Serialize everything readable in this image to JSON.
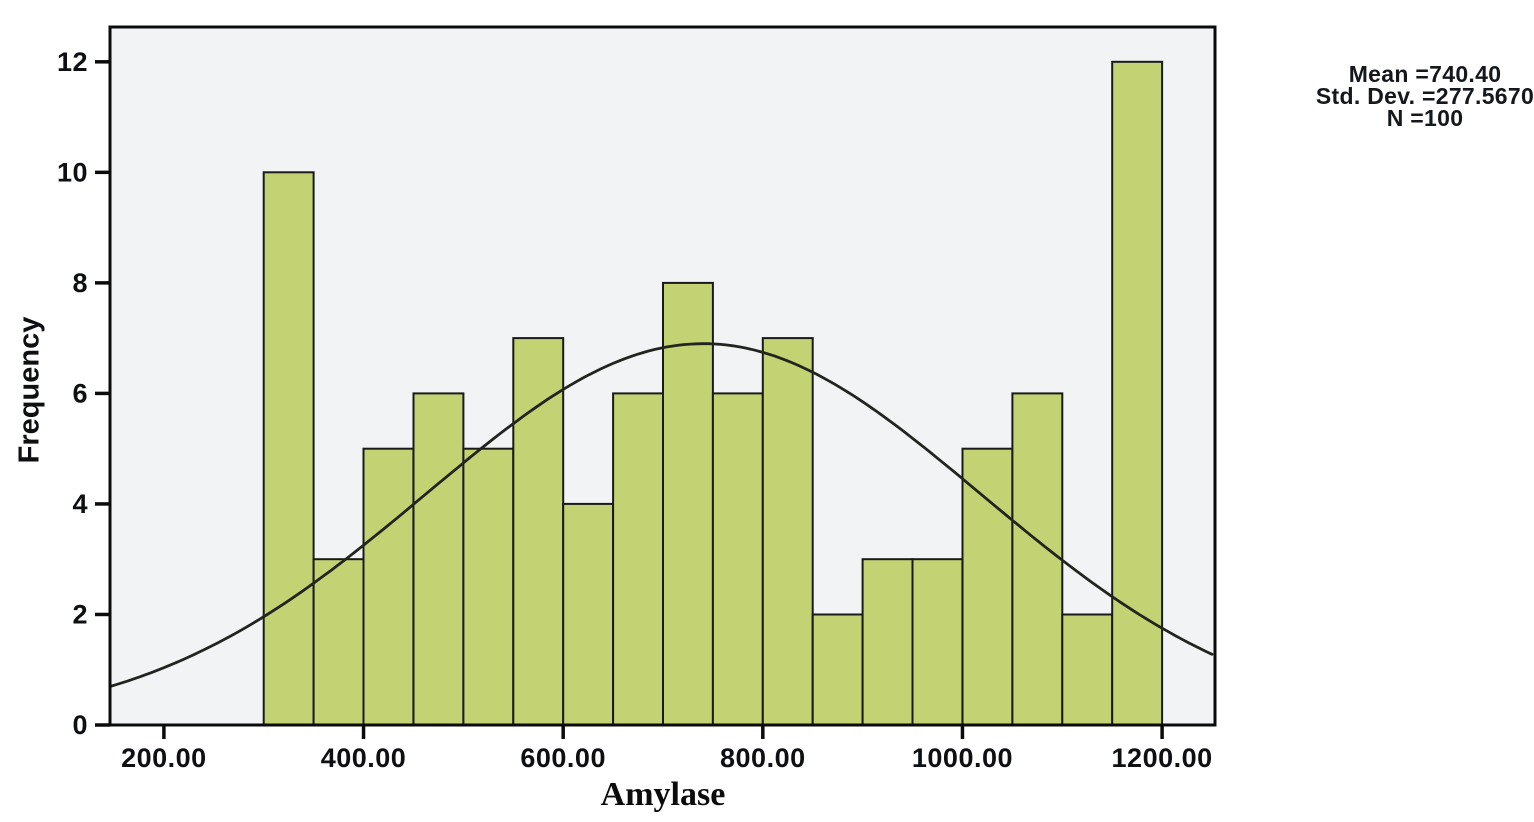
{
  "chart_data": {
    "type": "bar",
    "variant": "histogram-with-normal-curve",
    "title": "",
    "xlabel": "Amylase",
    "ylabel": "Frequency",
    "bin_width": 50,
    "bin_starts": [
      300,
      350,
      400,
      450,
      500,
      550,
      600,
      650,
      700,
      750,
      800,
      850,
      900,
      950,
      1000,
      1050,
      1100,
      1150
    ],
    "values": [
      10,
      3,
      5,
      6,
      5,
      7,
      4,
      6,
      8,
      6,
      7,
      2,
      3,
      3,
      5,
      6,
      2,
      12
    ],
    "xlim": [
      146,
      1253
    ],
    "ylim": [
      0,
      12.63
    ],
    "grid": false,
    "legend": false,
    "x_ticks": [
      {
        "v": 200,
        "label": "200.00"
      },
      {
        "v": 400,
        "label": "400.00"
      },
      {
        "v": 600,
        "label": "600.00"
      },
      {
        "v": 800,
        "label": "800.00"
      },
      {
        "v": 1000,
        "label": "1000.00"
      },
      {
        "v": 1200,
        "label": "1200.00"
      }
    ],
    "y_ticks": [
      {
        "v": 0,
        "label": "0"
      },
      {
        "v": 2,
        "label": "2"
      },
      {
        "v": 4,
        "label": "4"
      },
      {
        "v": 6,
        "label": "6"
      },
      {
        "v": 8,
        "label": "8"
      },
      {
        "v": 10,
        "label": "10"
      },
      {
        "v": 12,
        "label": "12"
      }
    ],
    "normal_curve": {
      "mean": 740.4,
      "sd": 277.567,
      "n": 100,
      "peak_height": 6.9
    },
    "colors": {
      "bar": "#c3d374",
      "bar_outline": "#1a1a1a",
      "plot_bg": "#f1f3f5",
      "axis": "#0b0b0b",
      "curve": "#22251f",
      "text": "#0d0f12"
    }
  },
  "stats": {
    "mean": "Mean =740.40",
    "std_dev": "Std. Dev. =277.5670",
    "n": "N =100"
  }
}
